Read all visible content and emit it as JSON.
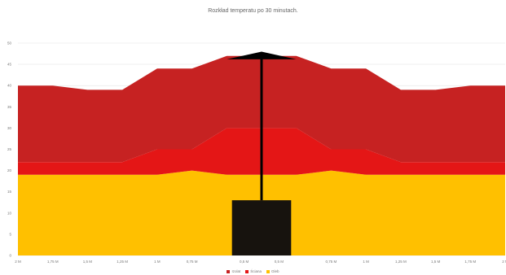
{
  "chart_data": {
    "type": "area",
    "title": "Rozkład temperatu po 30 minutach.",
    "stacked": true,
    "x": [
      "2 M",
      "1,75 M",
      "1,5 M",
      "1,25 M",
      "1 M",
      "0,75 M",
      "0,5 M",
      "0,5 M",
      "0,75 M",
      "1 M",
      "1,25 M",
      "1,5 M",
      "1,75 M",
      "2 M"
    ],
    "ylim": [
      0,
      50
    ],
    "yticks": [
      0,
      5,
      10,
      15,
      20,
      25,
      30,
      35,
      40,
      45,
      50
    ],
    "grid": true,
    "legend_position": "bottom",
    "series": [
      {
        "name": "Izolat",
        "color": "#c62222",
        "values": [
          18,
          18,
          17,
          17,
          19,
          19,
          17,
          17,
          19,
          19,
          17,
          17,
          18,
          18
        ]
      },
      {
        "name": "Ściana",
        "color": "#e41616",
        "values": [
          3,
          3,
          3,
          3,
          6,
          5,
          11,
          11,
          5,
          6,
          3,
          3,
          3,
          3
        ]
      },
      {
        "name": "Gleb",
        "color": "#ffc000",
        "values": [
          19,
          19,
          19,
          19,
          19,
          20,
          19,
          19,
          20,
          19,
          19,
          19,
          19,
          19
        ]
      }
    ],
    "x_points": [
      0,
      1,
      2,
      3,
      4,
      5,
      6,
      8,
      9,
      10,
      11,
      12,
      13,
      14
    ],
    "x_tick_positions": [
      0,
      1,
      2,
      3,
      4,
      5,
      6.5,
      7.5,
      9,
      10,
      11,
      12,
      13,
      14
    ]
  },
  "colors": {
    "post": "#000000",
    "base": "#17130e",
    "grid": "#e6e6e6"
  }
}
